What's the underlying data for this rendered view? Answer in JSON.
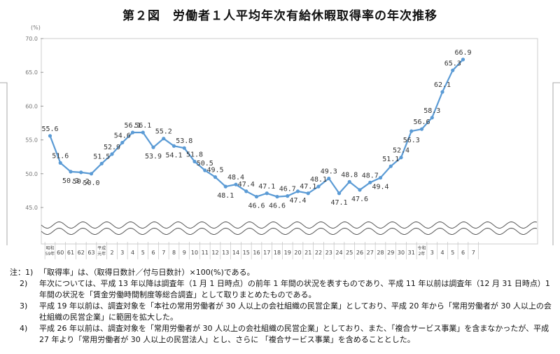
{
  "title": "第２図　労働者１人平均年次有給休暇取得率の年次推移",
  "chart_data": {
    "type": "line",
    "title": "第２図　労働者１人平均年次有給休暇取得率の年次推移",
    "ylabel": "(%)",
    "xlabel": "",
    "ylim": [
      45.0,
      70.0
    ],
    "y_ticks": [
      "45.0",
      "50.0",
      "55.0",
      "60.0",
      "65.0",
      "70.0"
    ],
    "categories": [
      "昭和59年",
      "60",
      "61",
      "62",
      "63",
      "平成元年",
      "2",
      "3",
      "4",
      "5",
      "6",
      "7",
      "8",
      "9",
      "10",
      "11",
      "12",
      "13",
      "14",
      "15",
      "16",
      "17",
      "18",
      "19",
      "20",
      "21",
      "22",
      "23",
      "24",
      "25",
      "26",
      "27",
      "28",
      "29",
      "30",
      "31",
      "令和2年",
      "3",
      "4",
      "5",
      "6",
      "7"
    ],
    "x_ticks": [
      {
        "main": "昭和",
        "sub": "59年"
      },
      {
        "main": "60"
      },
      {
        "main": "61"
      },
      {
        "main": "62"
      },
      {
        "main": "63"
      },
      {
        "main": "平成",
        "sub": "元年"
      },
      {
        "main": "2"
      },
      {
        "main": "3"
      },
      {
        "main": "4"
      },
      {
        "main": "5"
      },
      {
        "main": "6"
      },
      {
        "main": "7"
      },
      {
        "main": "8"
      },
      {
        "main": "9"
      },
      {
        "main": "10"
      },
      {
        "main": "11"
      },
      {
        "main": "12"
      },
      {
        "main": "13"
      },
      {
        "main": "14"
      },
      {
        "main": "15"
      },
      {
        "main": "16"
      },
      {
        "main": "17"
      },
      {
        "main": "18"
      },
      {
        "main": "19"
      },
      {
        "main": "20"
      },
      {
        "main": "21"
      },
      {
        "main": "22"
      },
      {
        "main": "23"
      },
      {
        "main": "24"
      },
      {
        "main": "25"
      },
      {
        "main": "26"
      },
      {
        "main": "27"
      },
      {
        "main": "28"
      },
      {
        "main": "29"
      },
      {
        "main": "30"
      },
      {
        "main": "31"
      },
      {
        "main": "令和",
        "sub": "2年"
      },
      {
        "main": "3"
      },
      {
        "main": "4"
      },
      {
        "main": "5"
      },
      {
        "main": "6"
      },
      {
        "main": "7"
      }
    ],
    "values": [
      55.6,
      51.6,
      50.3,
      50.2,
      50.0,
      51.5,
      52.9,
      54.6,
      56.1,
      56.1,
      53.9,
      55.2,
      54.1,
      53.8,
      51.8,
      50.5,
      49.5,
      48.1,
      48.4,
      47.4,
      46.6,
      47.1,
      46.6,
      46.7,
      47.4,
      47.1,
      48.1,
      49.3,
      47.1,
      48.8,
      47.6,
      48.7,
      49.4,
      51.1,
      52.4,
      56.3,
      56.6,
      58.3,
      62.1,
      65.3,
      66.9
    ],
    "labels": [
      "55.6",
      "51.6",
      "50.3",
      "50.2",
      "50.0",
      "51.5",
      "52.9",
      "54.6",
      "56.1",
      "56.1",
      "53.9",
      "55.2",
      "54.1",
      "53.8",
      "51.8",
      "50.5",
      "49.5",
      "48.1",
      "48.4",
      "47.4",
      "46.6",
      "47.1",
      "46.6",
      "46.7",
      "47.4",
      "47.1",
      "48.1",
      "49.3",
      "47.1",
      "48.8",
      "47.6",
      "48.7",
      "49.4",
      "51.1",
      "52.4",
      "56.3",
      "56.6",
      "58.3",
      "62.1",
      "65.3",
      "66.9"
    ],
    "label_pos": [
      "above",
      "above",
      "below",
      "below",
      "below",
      "above",
      "above",
      "above",
      "above",
      "above",
      "below",
      "above",
      "below",
      "above",
      "above",
      "above",
      "above",
      "below",
      "above",
      "above",
      "below",
      "above",
      "below",
      "above",
      "below",
      "above",
      "above",
      "above",
      "below",
      "above",
      "below",
      "above",
      "below",
      "above",
      "above",
      "below",
      "above",
      "above",
      "above",
      "above",
      "above"
    ],
    "line_color": "#5b9bd5",
    "grid": false
  },
  "notes": [
    {
      "lead": "注：1)",
      "text": "「取得率」は、（取得日数計／付与日数計）×100(%)である。"
    },
    {
      "lead": "    2)",
      "text": "年次については、平成 13 年以降は調査年（1 月 1 日時点）の前年 1 年間の状況を表すものであり、平成 11 年以前は調査年（12 月 31 日時点）1 年間の状況を「賃金労働時間制度等総合調査」として取りまとめたものである。"
    },
    {
      "lead": "    3)",
      "text": "平成 19 年以前は、調査対象を「本社の常用労働者が 30 人以上の会社組織の民営企業」としており、平成 20 年から「常用労働者が 30 人以上の会社組織の民営企業」に範囲を拡大した。"
    },
    {
      "lead": "    4)",
      "text": "平成 26 年以前は、調査対象を「常用労働者が 30 人以上の会社組織の民営企業」としており、また、「複合サービス事業」を含まなかったが、平成 27 年より「常用労働者が 30 人以上の民営法人」とし、さらに 「複合サービス事業」を含めることとした。"
    }
  ]
}
